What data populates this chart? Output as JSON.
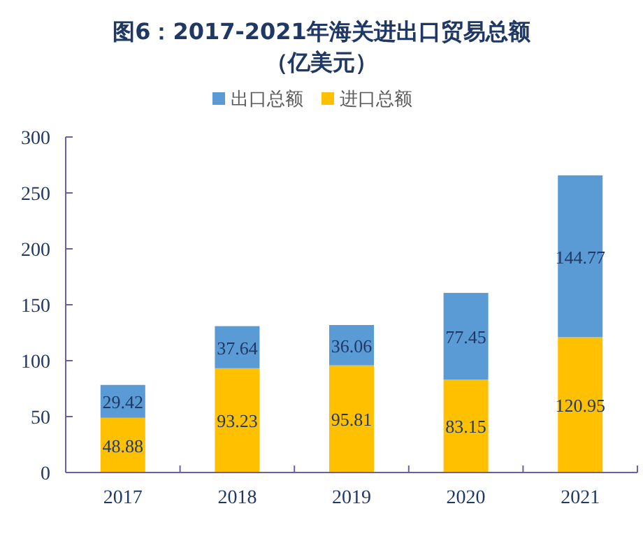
{
  "chart_data": {
    "type": "bar",
    "stacked": true,
    "title": "图6：2017-2021年海关进出口贸易总额（亿美元）",
    "categories": [
      "2017",
      "2018",
      "2019",
      "2020",
      "2021"
    ],
    "series": [
      {
        "name": "进口总额",
        "color": "#ffc000",
        "values": [
          48.88,
          93.23,
          95.81,
          83.15,
          120.95
        ]
      },
      {
        "name": "出口总额",
        "color": "#5b9bd5",
        "values": [
          29.42,
          37.64,
          36.06,
          77.45,
          144.77
        ]
      }
    ],
    "ylim": [
      0,
      300
    ],
    "yticks": [
      0,
      50,
      100,
      150,
      200,
      250,
      300
    ],
    "data_labels": true,
    "legend": "top",
    "grid": false
  }
}
